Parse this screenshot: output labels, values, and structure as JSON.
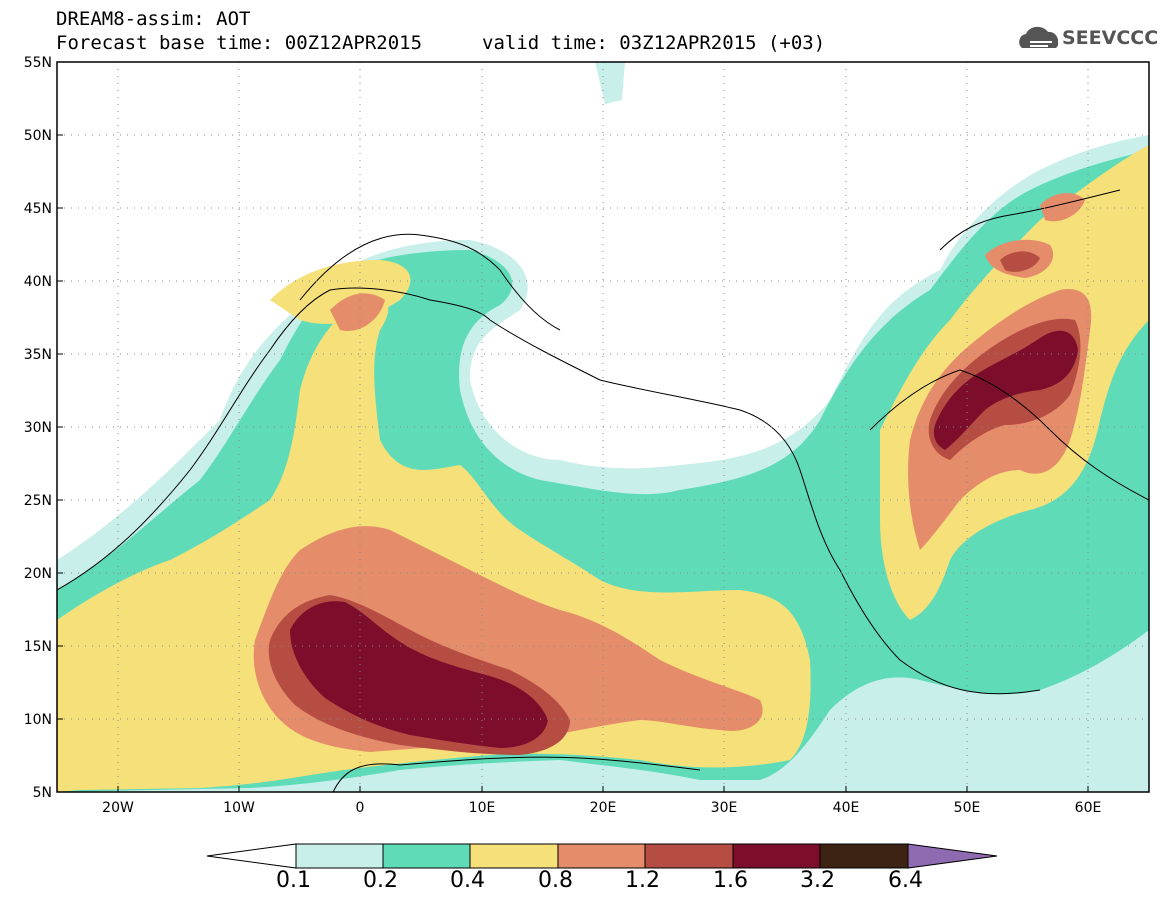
{
  "header": {
    "title": "DREAM8-assim: AOT",
    "base_time": "Forecast base time: 00Z12APR2015",
    "valid_time": "valid time: 03Z12APR2015 (+03)",
    "logo": "SEEVCCC"
  },
  "map": {
    "lat_labels": [
      "55N",
      "50N",
      "45N",
      "40N",
      "35N",
      "30N",
      "25N",
      "20N",
      "15N",
      "10N",
      "5N"
    ],
    "lon_labels": [
      "20W",
      "10W",
      "0",
      "10E",
      "20E",
      "30E",
      "40E",
      "50E",
      "60E"
    ],
    "lon_range": [
      -25,
      65
    ],
    "lat_range": [
      5,
      55
    ],
    "grid": "dotted",
    "coastline_color": "#000000"
  },
  "colorbar": {
    "labels": [
      "0.1",
      "0.2",
      "0.4",
      "0.8",
      "1.2",
      "1.6",
      "3.2",
      "6.4"
    ],
    "colors": [
      "#ffffff",
      "#c9efea",
      "#5fdbb8",
      "#f6e07a",
      "#e58d6a",
      "#b64d43",
      "#7c0d2b",
      "#3c2314",
      "#8e6bb0"
    ]
  }
}
